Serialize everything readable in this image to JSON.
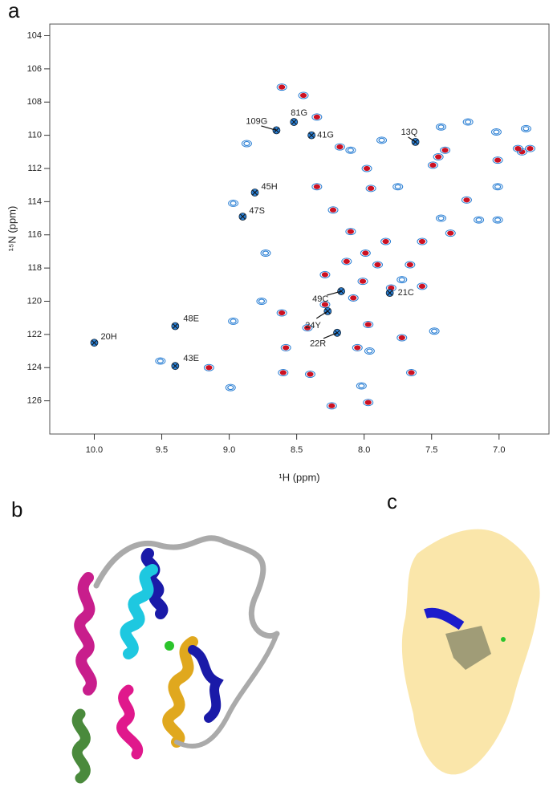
{
  "panel_labels": [
    "a",
    "b",
    "c"
  ],
  "chart_data": {
    "type": "scatter",
    "x_label": "¹H (ppm)",
    "y_label": "¹⁵N (ppm)",
    "xlim": [
      10.33,
      6.63
    ],
    "ylim": [
      103.3,
      128.0
    ],
    "xticks": [
      {
        "value": 10,
        "label": "10.0"
      },
      9.5,
      {
        "value": 9,
        "label": "9.0"
      },
      8.5,
      {
        "value": 8,
        "label": "8.0"
      },
      7.5,
      {
        "value": 7,
        "label": "7.0"
      }
    ],
    "yticks": [
      104,
      106,
      108,
      110,
      112,
      114,
      116,
      118,
      120,
      122,
      124,
      126
    ],
    "series": [
      {
        "color": "#cc1122",
        "x": [
          8.61,
          8.45,
          8.35,
          8.18,
          7.98,
          8.35,
          8.23,
          8.1,
          7.99,
          7.84,
          7.8,
          8.08,
          8.01,
          8.61,
          8.42,
          8.29,
          8.58,
          8.05,
          8.6,
          8.4,
          9.15,
          8.24,
          7.97,
          7.65,
          7.57,
          7.66,
          7.49,
          7.45,
          7.4,
          7.01,
          6.83,
          6.77,
          6.86,
          8.13,
          7.9,
          8.29,
          7.97,
          7.72,
          7.24,
          7.36,
          7.95,
          7.57
        ],
        "values": [
          107.1,
          107.6,
          108.9,
          110.7,
          112.0,
          113.1,
          114.5,
          115.8,
          117.1,
          116.4,
          119.2,
          119.8,
          118.8,
          120.7,
          121.6,
          120.2,
          122.8,
          122.8,
          124.3,
          124.4,
          124.0,
          126.3,
          126.1,
          124.3,
          119.1,
          117.8,
          111.8,
          111.3,
          110.9,
          111.5,
          111.0,
          110.8,
          110.8,
          117.6,
          117.8,
          118.4,
          121.4,
          122.2,
          113.9,
          115.9,
          113.2,
          116.4
        ]
      },
      {
        "color": "#2a7fd4",
        "x": [
          8.87,
          8.1,
          7.87,
          7.43,
          7.23,
          7.02,
          6.8,
          7.75,
          7.01,
          8.97,
          8.73,
          8.76,
          8.97,
          9.51,
          7.15,
          7.43,
          7.01,
          7.72,
          8.02,
          7.48,
          7.96,
          8.99
        ],
        "values": [
          110.5,
          110.9,
          110.3,
          109.5,
          109.2,
          109.8,
          109.6,
          113.1,
          113.1,
          114.1,
          117.1,
          120.0,
          121.2,
          123.6,
          115.1,
          115.0,
          115.1,
          118.7,
          125.1,
          121.8,
          123.0,
          125.2
        ]
      }
    ],
    "annotations": [
      {
        "text": "20H",
        "x": 10.0,
        "y": 122.5
      },
      {
        "text": "48E",
        "x": 9.4,
        "y": 121.5
      },
      {
        "text": "43E",
        "x": 9.4,
        "y": 123.9
      },
      {
        "text": "45H",
        "x": 8.81,
        "y": 113.45
      },
      {
        "text": "47S",
        "x": 8.9,
        "y": 114.9
      },
      {
        "text": "109G",
        "x": 8.65,
        "y": 109.7
      },
      {
        "text": "81G",
        "x": 8.52,
        "y": 109.2
      },
      {
        "text": "41G",
        "x": 8.39,
        "y": 110.0
      },
      {
        "text": "13Q",
        "x": 7.62,
        "y": 110.4
      },
      {
        "text": "49C",
        "x": 8.17,
        "y": 119.4
      },
      {
        "text": "21C",
        "x": 7.81,
        "y": 119.5
      },
      {
        "text": "24Y",
        "x": 8.27,
        "y": 120.6
      },
      {
        "text": "22R",
        "x": 8.2,
        "y": 121.9
      }
    ]
  }
}
